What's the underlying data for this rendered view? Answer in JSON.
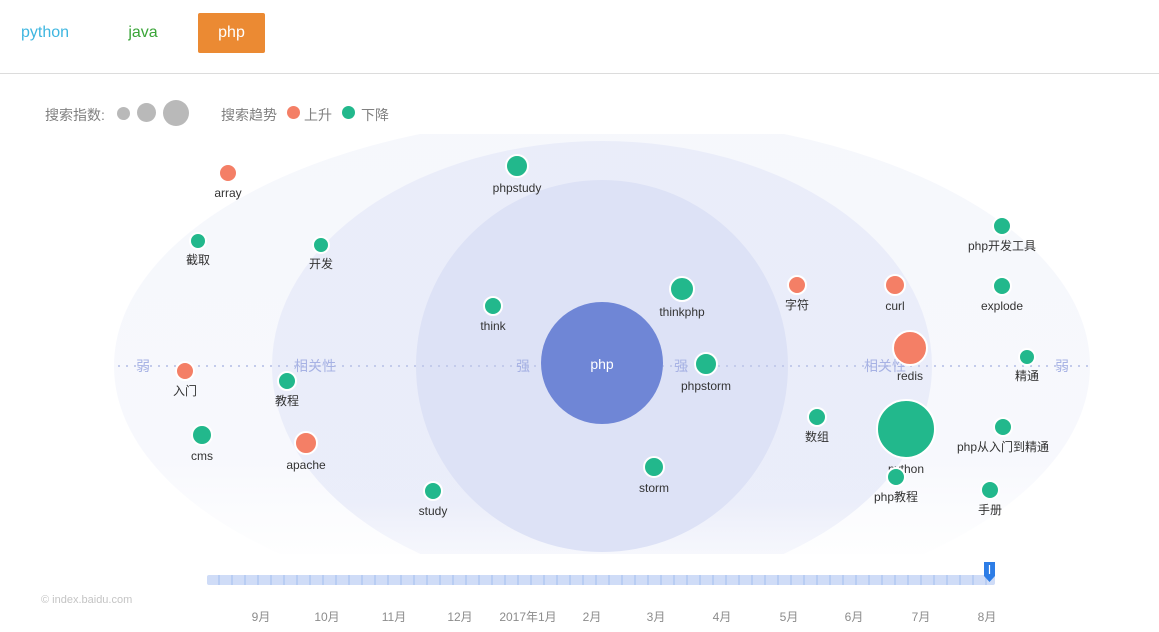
{
  "tabs": [
    {
      "label": "python",
      "color": "#3eb6e0",
      "active": false
    },
    {
      "label": "java",
      "color": "#3aa538",
      "active": false
    },
    {
      "label": "php",
      "color": "#ffffff",
      "bg": "#eb8a33",
      "active": true
    }
  ],
  "legend": {
    "index_label": "搜索指数:",
    "trend_label": "搜索趋势",
    "up_label": "上升",
    "down_label": "下降",
    "up_color": "#f47f66",
    "down_color": "#22b88c",
    "size_color": "#b9b9b9"
  },
  "chart": {
    "center_label": "php",
    "center_color": "#6f86d6",
    "axis_labels": {
      "weak": "弱",
      "relevance": "相关性",
      "strong": "强"
    },
    "keywords": [
      {
        "label": "array",
        "trend": "up"
      },
      {
        "label": "截取",
        "trend": "down"
      },
      {
        "label": "开发",
        "trend": "down"
      },
      {
        "label": "入门",
        "trend": "up"
      },
      {
        "label": "教程",
        "trend": "down"
      },
      {
        "label": "cms",
        "trend": "down"
      },
      {
        "label": "apache",
        "trend": "up"
      },
      {
        "label": "study",
        "trend": "down"
      },
      {
        "label": "phpstudy",
        "trend": "down"
      },
      {
        "label": "think",
        "trend": "down"
      },
      {
        "label": "thinkphp",
        "trend": "down"
      },
      {
        "label": "phpstorm",
        "trend": "down"
      },
      {
        "label": "storm",
        "trend": "down"
      },
      {
        "label": "字符",
        "trend": "up"
      },
      {
        "label": "数组",
        "trend": "down"
      },
      {
        "label": "curl",
        "trend": "up"
      },
      {
        "label": "redis",
        "trend": "up"
      },
      {
        "label": "python",
        "trend": "down"
      },
      {
        "label": "php教程",
        "trend": "down"
      },
      {
        "label": "php开发工具",
        "trend": "down"
      },
      {
        "label": "explode",
        "trend": "down"
      },
      {
        "label": "精通",
        "trend": "down"
      },
      {
        "label": "php从入门到精通",
        "trend": "down"
      },
      {
        "label": "手册",
        "trend": "down"
      }
    ]
  },
  "timeline": {
    "months": [
      "9月",
      "10月",
      "11月",
      "12月",
      "2017年1月",
      "2月",
      "3月",
      "4月",
      "5月",
      "6月",
      "7月",
      "8月"
    ],
    "handle_color": "#2d7de6"
  },
  "copyright": "© index.baidu.com"
}
